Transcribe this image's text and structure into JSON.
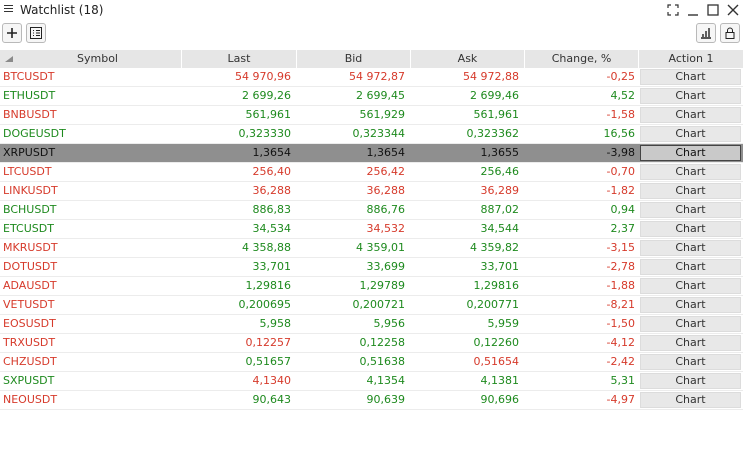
{
  "window": {
    "title": "Watchlist (18)",
    "icons": [
      "menu-icon",
      "fullscreen-icon",
      "minimize-icon",
      "maximize-icon",
      "close-icon"
    ]
  },
  "toolbar": {
    "add_icon": "plus-icon",
    "columns_icon": "column-list-icon",
    "chart_icon": "bar-chart-icon",
    "lock_icon": "lock-icon"
  },
  "colors": {
    "up": "#1e8a1e",
    "down": "#d63a2b",
    "selected_row": "#8f8f8f"
  },
  "table": {
    "columns": [
      "Symbol",
      "Last",
      "Bid",
      "Ask",
      "Change, %",
      "Action 1"
    ],
    "action_label": "Chart",
    "selected_index": 4,
    "rows": [
      {
        "symbol": "BTCUSDT",
        "last": "54 970,96",
        "bid": "54 972,87",
        "ask": "54 972,88",
        "change": "-0,25",
        "dir": "down",
        "sym_color": "down"
      },
      {
        "symbol": "ETHUSDT",
        "last": "2 699,26",
        "bid": "2 699,45",
        "ask": "2 699,46",
        "change": "4,52",
        "dir": "up",
        "sym_color": "up"
      },
      {
        "symbol": "BNBUSDT",
        "last": "561,961",
        "bid": "561,929",
        "ask": "561,961",
        "change": "-1,58",
        "dir": "down",
        "sym_color": "down"
      },
      {
        "symbol": "DOGEUSDT",
        "last": "0,323330",
        "bid": "0,323344",
        "ask": "0,323362",
        "change": "16,56",
        "dir": "up",
        "sym_color": "up"
      },
      {
        "symbol": "XRPUSDT",
        "last": "1,3654",
        "bid": "1,3654",
        "ask": "1,3655",
        "change": "-3,98",
        "dir": "down",
        "sym_color": "down"
      },
      {
        "symbol": "LTCUSDT",
        "last": "256,40",
        "bid": "256,42",
        "ask": "256,46",
        "change": "-0,70",
        "dir": "down",
        "sym_color": "down"
      },
      {
        "symbol": "LINKUSDT",
        "last": "36,288",
        "bid": "36,288",
        "ask": "36,289",
        "change": "-1,82",
        "dir": "down",
        "sym_color": "down"
      },
      {
        "symbol": "BCHUSDT",
        "last": "886,83",
        "bid": "886,76",
        "ask": "887,02",
        "change": "0,94",
        "dir": "up",
        "sym_color": "up"
      },
      {
        "symbol": "ETCUSDT",
        "last": "34,534",
        "bid": "34,532",
        "ask": "34,544",
        "change": "2,37",
        "dir": "up",
        "sym_color": "up"
      },
      {
        "symbol": "MKRUSDT",
        "last": "4 358,88",
        "bid": "4 359,01",
        "ask": "4 359,82",
        "change": "-3,15",
        "dir": "down",
        "sym_color": "down"
      },
      {
        "symbol": "DOTUSDT",
        "last": "33,701",
        "bid": "33,699",
        "ask": "33,701",
        "change": "-2,78",
        "dir": "down",
        "sym_color": "down"
      },
      {
        "symbol": "ADAUSDT",
        "last": "1,29816",
        "bid": "1,29789",
        "ask": "1,29816",
        "change": "-1,88",
        "dir": "down",
        "sym_color": "down"
      },
      {
        "symbol": "VETUSDT",
        "last": "0,200695",
        "bid": "0,200721",
        "ask": "0,200771",
        "change": "-8,21",
        "dir": "down",
        "sym_color": "down"
      },
      {
        "symbol": "EOSUSDT",
        "last": "5,958",
        "bid": "5,956",
        "ask": "5,959",
        "change": "-1,50",
        "dir": "down",
        "sym_color": "down"
      },
      {
        "symbol": "TRXUSDT",
        "last": "0,12257",
        "bid": "0,12258",
        "ask": "0,12260",
        "change": "-4,12",
        "dir": "down",
        "sym_color": "down"
      },
      {
        "symbol": "CHZUSDT",
        "last": "0,51657",
        "bid": "0,51638",
        "ask": "0,51654",
        "change": "-2,42",
        "dir": "down",
        "sym_color": "down"
      },
      {
        "symbol": "SXPUSDT",
        "last": "4,1340",
        "bid": "4,1354",
        "ask": "4,1381",
        "change": "5,31",
        "dir": "up",
        "sym_color": "up"
      },
      {
        "symbol": "NEOUSDT",
        "last": "90,643",
        "bid": "90,639",
        "ask": "90,696",
        "change": "-4,97",
        "dir": "down",
        "sym_color": "down"
      }
    ],
    "cell_colors": [
      [
        "down",
        "down",
        "down"
      ],
      [
        "up",
        "up",
        "up"
      ],
      [
        "up",
        "up",
        "up"
      ],
      [
        "up",
        "up",
        "up"
      ],
      [
        "down",
        "down",
        "down"
      ],
      [
        "down",
        "down",
        "up"
      ],
      [
        "down",
        "down",
        "down"
      ],
      [
        "up",
        "up",
        "up"
      ],
      [
        "up",
        "down",
        "up"
      ],
      [
        "up",
        "up",
        "up"
      ],
      [
        "up",
        "up",
        "up"
      ],
      [
        "up",
        "up",
        "up"
      ],
      [
        "up",
        "up",
        "up"
      ],
      [
        "up",
        "up",
        "up"
      ],
      [
        "down",
        "up",
        "up"
      ],
      [
        "up",
        "up",
        "down"
      ],
      [
        "down",
        "up",
        "up"
      ],
      [
        "up",
        "up",
        "up"
      ]
    ]
  }
}
